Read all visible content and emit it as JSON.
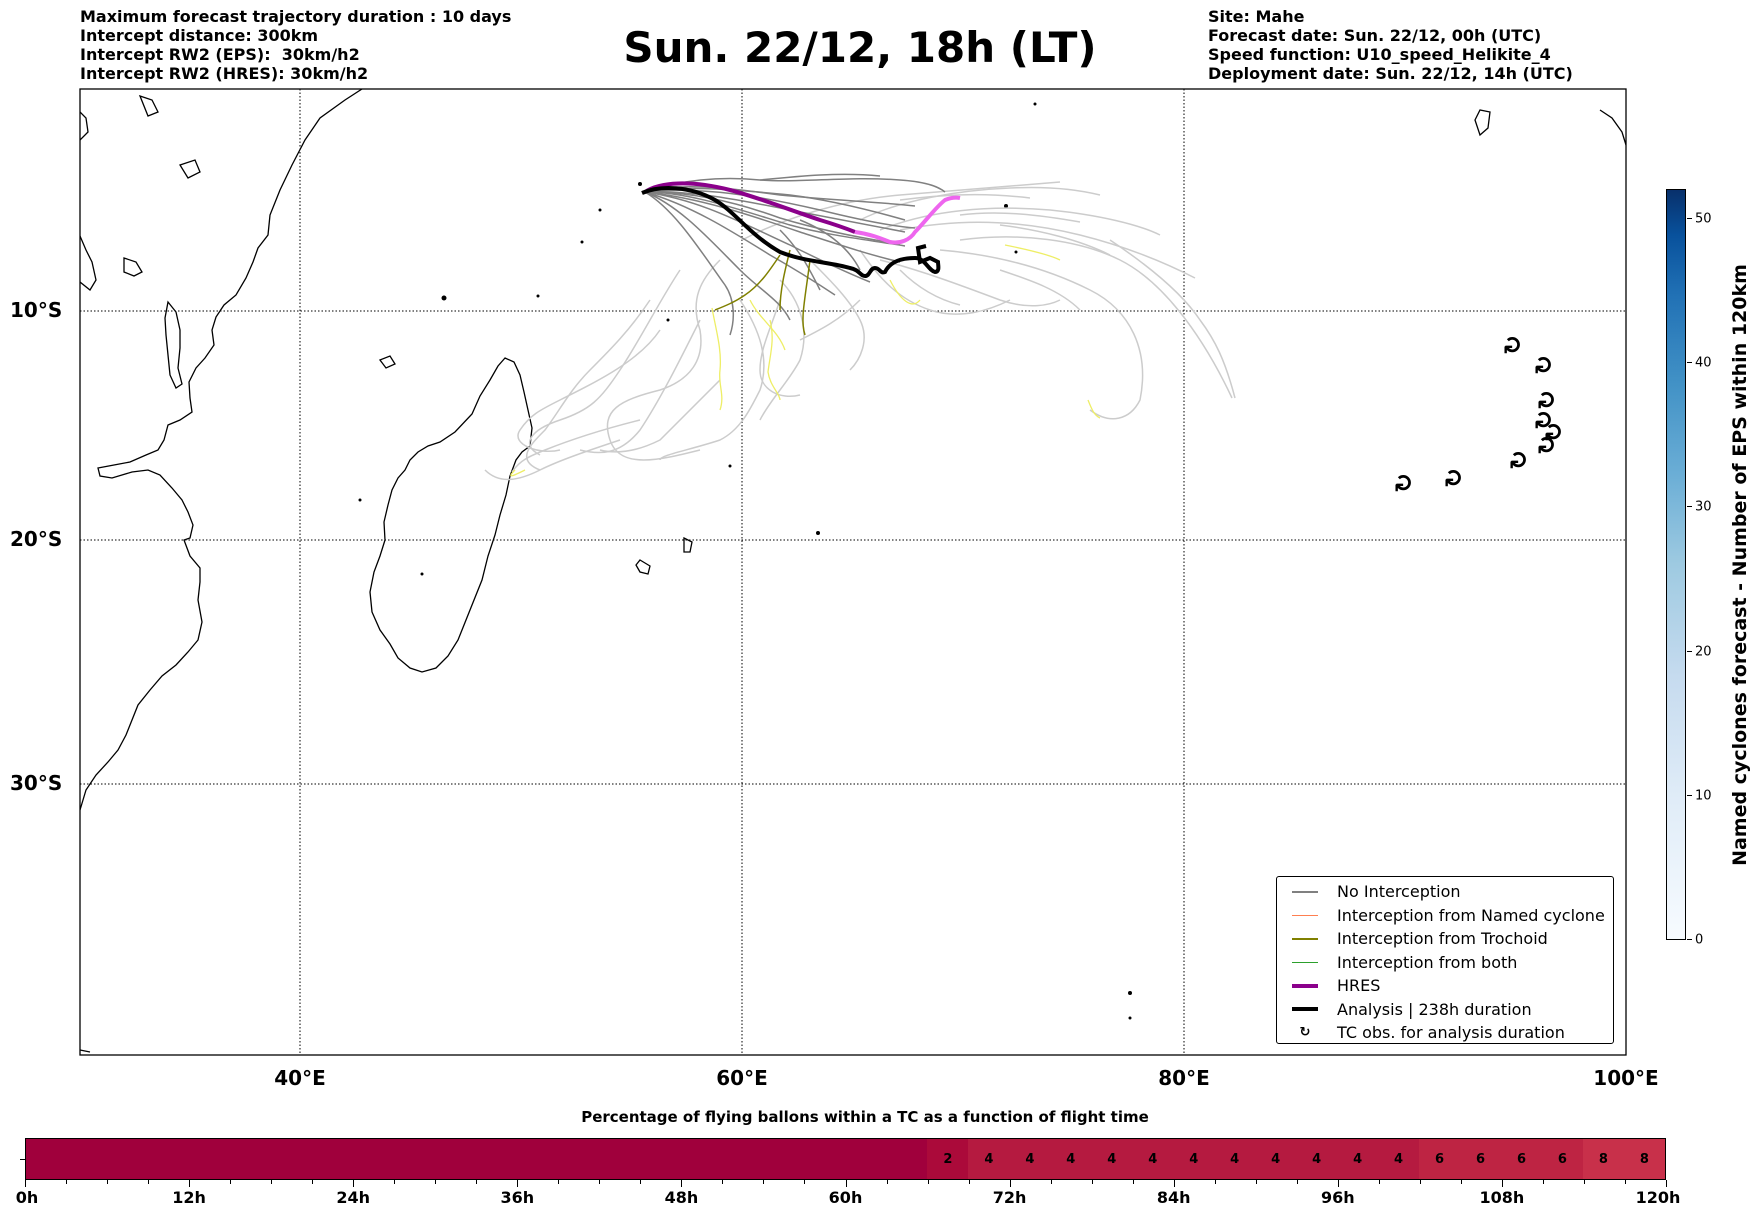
{
  "header_left": [
    "Maximum forecast trajectory duration : 10 days",
    "Intercept distance: 300km",
    "Intercept RW2 (EPS):  30km/h2",
    "Intercept RW2 (HRES): 30km/h2"
  ],
  "title": "Sun. 22/12, 18h (LT)",
  "header_right": [
    "Site: Mahe",
    "Forecast date: Sun. 22/12, 00h (UTC)",
    "Speed function: U10_speed_Helikite_4",
    "Deployment date: Sun. 22/12, 14h (UTC)"
  ],
  "map": {
    "lon_labels": [
      "40°E",
      "60°E",
      "80°E",
      "100°E"
    ],
    "lat_labels": [
      "10°S",
      "20°S",
      "30°S"
    ],
    "gridlines": "dotted",
    "colors": {
      "no_interception": "#808080",
      "named_cyclone": "#ff7f50",
      "trochoid": "#808000",
      "both": "#2ca02c",
      "hres": "#8b008b",
      "hres_late": "#ee66ee",
      "analysis": "#000000",
      "faded_track": "#cccccc",
      "faded_trochoid": "#eeee66"
    },
    "tc_obs_icon": "typhoon-symbol-icon"
  },
  "legend": {
    "items": [
      {
        "label": "No Interception",
        "color": "#808080",
        "kind": "thin"
      },
      {
        "label": "Interception from Named cyclone",
        "color": "#ff7f50",
        "kind": "thin"
      },
      {
        "label": "Interception from Trochoid",
        "color": "#808000",
        "kind": "thin"
      },
      {
        "label": "Interception from both",
        "color": "#2ca02c",
        "kind": "thin"
      },
      {
        "label": "HRES",
        "color": "#8b008b",
        "kind": "thick"
      },
      {
        "label": "Analysis | 238h duration",
        "color": "#000000",
        "kind": "thick"
      },
      {
        "label": "TC obs. for analysis duration",
        "color": "#000000",
        "kind": "icon"
      }
    ]
  },
  "colorbar": {
    "label": "Named cyclones forecast - Number of EPS within 120km",
    "ticks": [
      "0",
      "10",
      "20",
      "30",
      "40",
      "50"
    ],
    "range": [
      0,
      52
    ],
    "colormap": "Blues"
  },
  "bottom_bar": {
    "title": "Percentage of flying ballons within a TC as a function of flight time",
    "tick_labels": [
      "0h",
      "12h",
      "24h",
      "36h",
      "48h",
      "60h",
      "72h",
      "84h",
      "96h",
      "108h",
      "120h"
    ],
    "cells": [
      {
        "from_h": 0,
        "to_h": 66,
        "label": "",
        "color": "#a0003c"
      },
      {
        "from_h": 66,
        "to_h": 69,
        "label": "2",
        "color": "#ab0a3a"
      },
      {
        "from_h": 69,
        "to_h": 72,
        "label": "4",
        "color": "#b51a40"
      },
      {
        "from_h": 72,
        "to_h": 75,
        "label": "4",
        "color": "#b51a40"
      },
      {
        "from_h": 75,
        "to_h": 78,
        "label": "4",
        "color": "#b51a40"
      },
      {
        "from_h": 78,
        "to_h": 81,
        "label": "4",
        "color": "#b51a40"
      },
      {
        "from_h": 81,
        "to_h": 84,
        "label": "4",
        "color": "#b51a40"
      },
      {
        "from_h": 84,
        "to_h": 87,
        "label": "4",
        "color": "#b51a40"
      },
      {
        "from_h": 87,
        "to_h": 90,
        "label": "4",
        "color": "#b51a40"
      },
      {
        "from_h": 90,
        "to_h": 93,
        "label": "4",
        "color": "#b51a40"
      },
      {
        "from_h": 93,
        "to_h": 96,
        "label": "4",
        "color": "#b51a40"
      },
      {
        "from_h": 96,
        "to_h": 99,
        "label": "4",
        "color": "#b51a40"
      },
      {
        "from_h": 99,
        "to_h": 102,
        "label": "4",
        "color": "#b51a40"
      },
      {
        "from_h": 102,
        "to_h": 105,
        "label": "6",
        "color": "#be2443"
      },
      {
        "from_h": 105,
        "to_h": 108,
        "label": "6",
        "color": "#be2443"
      },
      {
        "from_h": 108,
        "to_h": 111,
        "label": "6",
        "color": "#be2443"
      },
      {
        "from_h": 111,
        "to_h": 114,
        "label": "6",
        "color": "#be2443"
      },
      {
        "from_h": 114,
        "to_h": 117,
        "label": "8",
        "color": "#c8304a"
      },
      {
        "from_h": 117,
        "to_h": 120,
        "label": "8",
        "color": "#c8304a"
      }
    ]
  }
}
